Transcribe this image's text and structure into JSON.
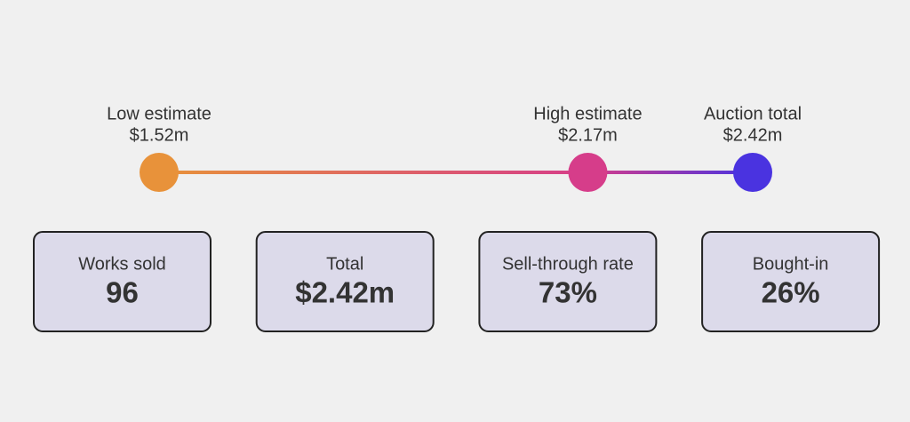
{
  "markers": [
    {
      "label": "Low estimate",
      "value": 1.52,
      "value_label": "$1.52m",
      "color": "#e8923a"
    },
    {
      "label": "High estimate",
      "value": 2.17,
      "value_label": "$2.17m",
      "color": "#d63d8a"
    },
    {
      "label": "Auction total",
      "value": 2.42,
      "value_label": "$2.42m",
      "color": "#4a33e0"
    }
  ],
  "cards": [
    {
      "label": "Works sold",
      "value": "96"
    },
    {
      "label": "Total",
      "value": "$2.42m"
    },
    {
      "label": "Sell-through rate",
      "value": "73%"
    },
    {
      "label": "Bought-in",
      "value": "26%"
    }
  ]
}
